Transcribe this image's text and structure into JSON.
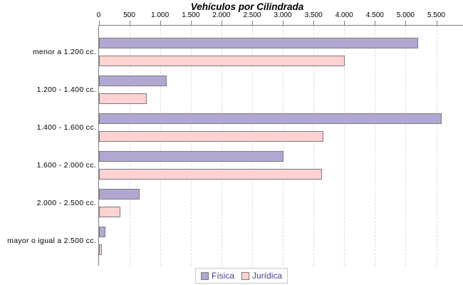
{
  "chart_data": {
    "type": "bar",
    "orientation": "horizontal",
    "title": "Vehículos por Cilindrada",
    "categories": [
      "menor a 1.200 cc.",
      "1.200 - 1.400 cc.",
      "1.400 - 1.600 cc.",
      "1.600 - 2.000 cc.",
      "2.000 - 2.500 cc.",
      "mayor o igual a 2.500 cc."
    ],
    "series": [
      {
        "name": "Física",
        "color": "#b2a7d3",
        "values": [
          5200,
          1100,
          5580,
          3000,
          660,
          100
        ]
      },
      {
        "name": "Jurídica",
        "color": "#ffd2d2",
        "values": [
          4000,
          780,
          3660,
          3630,
          350,
          50
        ]
      }
    ],
    "x_tick_labels": [
      "0",
      "500",
      "1.000",
      "1.500",
      "2.000",
      "2.500",
      "3.000",
      "3.500",
      "4.000",
      "4.500",
      "5.000",
      "5.500"
    ],
    "x_tick_values": [
      0,
      500,
      1000,
      1500,
      2000,
      2500,
      3000,
      3500,
      4000,
      4500,
      5000,
      5500
    ],
    "xlim": [
      0,
      5500
    ],
    "grid": "vertical-dashed",
    "legend_position": "bottom",
    "axis_position": "top"
  },
  "legend": {
    "items": [
      {
        "label": "Física",
        "color": "#b2a7d3"
      },
      {
        "label": "Jurídica",
        "color": "#ffd2d2"
      }
    ]
  },
  "colors": {
    "bar_border": "#7b7b7b",
    "axis": "#7e7e7e",
    "grid": "#dcdcdc",
    "legend_text": "#4b3c8c",
    "title_text": "#000000",
    "background": "#ffffff"
  }
}
